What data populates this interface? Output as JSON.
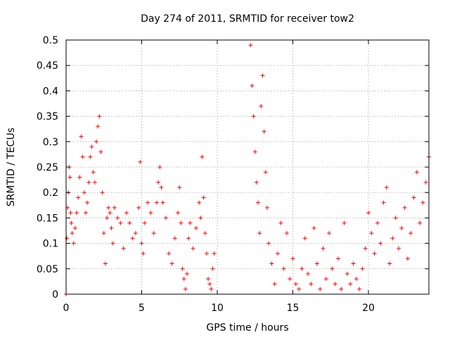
{
  "chart_data": {
    "type": "scatter",
    "title": "Day 274 of 2011, SRMTID for receiver tow2",
    "xlabel": "GPS time / hours",
    "ylabel": "SRMTID / TECUs",
    "xlim": [
      0,
      24
    ],
    "ylim": [
      0,
      0.5
    ],
    "xticks": [
      0,
      5,
      10,
      15,
      20
    ],
    "xtick_labels": [
      "0",
      "5",
      "10",
      "15",
      "20"
    ],
    "yticks": [
      0,
      0.05,
      0.1,
      0.15,
      0.2,
      0.25,
      0.3,
      0.35,
      0.4,
      0.45,
      0.5
    ],
    "ytick_labels": [
      "0",
      "0.05",
      "0.1",
      "0.15",
      "0.2",
      "0.25",
      "0.3",
      "0.35",
      "0.4",
      "0.45",
      "0.5"
    ],
    "grid": true,
    "marker": "plus",
    "color": "#ff0000",
    "series": [
      {
        "name": "tow2",
        "x": [
          0.0,
          0.05,
          0.1,
          0.15,
          0.2,
          0.25,
          0.3,
          0.35,
          0.4,
          0.5,
          0.6,
          0.7,
          0.8,
          0.9,
          1.0,
          1.1,
          1.2,
          1.3,
          1.4,
          1.5,
          1.6,
          1.7,
          1.8,
          1.9,
          2.0,
          2.1,
          2.2,
          2.3,
          2.4,
          2.5,
          2.6,
          2.7,
          2.8,
          2.9,
          3.0,
          3.1,
          3.2,
          3.4,
          3.6,
          3.8,
          4.0,
          4.2,
          4.4,
          4.6,
          4.8,
          4.9,
          5.0,
          5.1,
          5.2,
          5.4,
          5.6,
          5.8,
          6.0,
          6.1,
          6.2,
          6.3,
          6.4,
          6.6,
          6.8,
          7.0,
          7.2,
          7.4,
          7.5,
          7.6,
          7.7,
          7.8,
          7.9,
          8.0,
          8.1,
          8.2,
          8.4,
          8.6,
          8.8,
          8.9,
          9.0,
          9.1,
          9.2,
          9.3,
          9.4,
          9.5,
          9.6,
          9.7,
          9.8,
          12.2,
          12.3,
          12.4,
          12.5,
          12.6,
          12.7,
          12.8,
          12.9,
          13.0,
          13.1,
          13.2,
          13.3,
          13.4,
          13.6,
          13.8,
          14.0,
          14.2,
          14.4,
          14.6,
          14.8,
          15.0,
          15.2,
          15.4,
          15.6,
          15.8,
          16.0,
          16.2,
          16.4,
          16.6,
          16.8,
          17.0,
          17.2,
          17.4,
          17.6,
          17.8,
          18.0,
          18.2,
          18.4,
          18.6,
          18.8,
          19.0,
          19.2,
          19.4,
          19.6,
          19.8,
          20.0,
          20.2,
          20.4,
          20.6,
          20.8,
          21.0,
          21.2,
          21.4,
          21.6,
          21.8,
          22.0,
          22.2,
          22.4,
          22.6,
          22.8,
          23.0,
          23.2,
          23.4,
          23.6,
          23.8,
          24.0
        ],
        "y": [
          0.0,
          0.11,
          0.17,
          0.2,
          0.25,
          0.23,
          0.16,
          0.14,
          0.12,
          0.1,
          0.13,
          0.16,
          0.19,
          0.23,
          0.31,
          0.27,
          0.2,
          0.16,
          0.18,
          0.22,
          0.27,
          0.29,
          0.24,
          0.22,
          0.3,
          0.33,
          0.35,
          0.28,
          0.2,
          0.12,
          0.06,
          0.15,
          0.17,
          0.16,
          0.13,
          0.1,
          0.17,
          0.15,
          0.14,
          0.09,
          0.16,
          0.14,
          0.11,
          0.12,
          0.17,
          0.26,
          0.1,
          0.08,
          0.14,
          0.18,
          0.16,
          0.12,
          0.18,
          0.22,
          0.25,
          0.21,
          0.18,
          0.15,
          0.08,
          0.06,
          0.11,
          0.16,
          0.21,
          0.14,
          0.05,
          0.03,
          0.01,
          0.04,
          0.11,
          0.14,
          0.09,
          0.13,
          0.18,
          0.15,
          0.27,
          0.19,
          0.12,
          0.08,
          0.03,
          0.02,
          0.01,
          0.05,
          0.08,
          0.49,
          0.41,
          0.35,
          0.28,
          0.22,
          0.18,
          0.12,
          0.37,
          0.43,
          0.32,
          0.24,
          0.17,
          0.1,
          0.06,
          0.02,
          0.08,
          0.14,
          0.05,
          0.12,
          0.03,
          0.07,
          0.02,
          0.01,
          0.05,
          0.11,
          0.04,
          0.02,
          0.13,
          0.06,
          0.01,
          0.09,
          0.03,
          0.12,
          0.05,
          0.02,
          0.07,
          0.01,
          0.14,
          0.04,
          0.02,
          0.06,
          0.03,
          0.01,
          0.05,
          0.09,
          0.16,
          0.12,
          0.08,
          0.14,
          0.1,
          0.18,
          0.21,
          0.06,
          0.11,
          0.15,
          0.09,
          0.13,
          0.17,
          0.07,
          0.12,
          0.19,
          0.24,
          0.14,
          0.18,
          0.22,
          0.27
        ]
      }
    ]
  }
}
